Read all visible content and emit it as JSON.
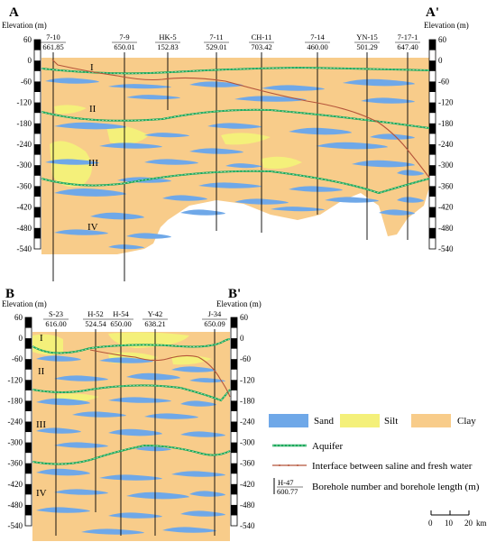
{
  "section_a": {
    "label_left": "A",
    "label_right": "A'",
    "axis_title": "Elevation (m)",
    "ticks": [
      "60",
      "0",
      "-60",
      "-120",
      "-180",
      "-240",
      "-300",
      "-360",
      "-420",
      "-480",
      "-540"
    ],
    "boreholes": [
      {
        "name": "7-10",
        "length": "661.85"
      },
      {
        "name": "7-9",
        "length": "650.01"
      },
      {
        "name": "HK-5",
        "length": "152.83"
      },
      {
        "name": "7-11",
        "length": "529.01"
      },
      {
        "name": "CH-11",
        "length": "703.42"
      },
      {
        "name": "7-14",
        "length": "460.00"
      },
      {
        "name": "YN-15",
        "length": "501.29"
      },
      {
        "name": "7-17-1",
        "length": "647.40"
      }
    ],
    "aquifers": [
      "I",
      "II",
      "III",
      "IV"
    ]
  },
  "section_b": {
    "label_left": "B",
    "label_right": "B'",
    "axis_title": "Elevation (m)",
    "ticks": [
      "60",
      "0",
      "-60",
      "-120",
      "-180",
      "-240",
      "-300",
      "-360",
      "-420",
      "-480",
      "-540"
    ],
    "boreholes": [
      {
        "name": "S-23",
        "length": "616.00"
      },
      {
        "name": "H-52",
        "length": "524.54"
      },
      {
        "name": "H-54",
        "length": "650.00"
      },
      {
        "name": "Y-42",
        "length": "638.21"
      },
      {
        "name": "J-34",
        "length": "650.09"
      }
    ],
    "aquifers": [
      "I",
      "II",
      "III",
      "IV"
    ]
  },
  "legend": {
    "sand": "Sand",
    "silt": "Silt",
    "clay": "Clay",
    "aquifer": "Aquifer",
    "interface": "Interface between saline and fresh water",
    "borehole_sample_name": "H-47",
    "borehole_sample_length": "600.77",
    "borehole_desc": "Borehole number and borehole length (m)",
    "colors": {
      "sand": "#6fa8e8",
      "silt": "#f4f07a",
      "clay": "#f8cc8a",
      "aquifer": "#1aa85a",
      "interface": "#b5543a"
    }
  },
  "scale_bar": {
    "ticks": [
      "0",
      "10",
      "20"
    ],
    "unit": "km"
  }
}
